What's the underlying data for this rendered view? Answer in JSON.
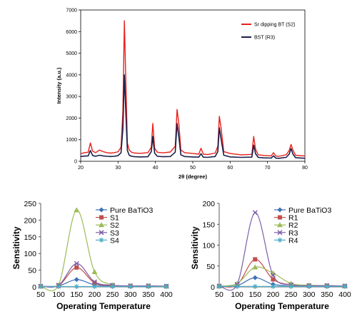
{
  "chart_data": [
    {
      "type": "line",
      "xlabel": "2θ (degree)",
      "ylabel": "Intensity (a.u.)",
      "xlim": [
        20,
        80
      ],
      "ylim": [
        0,
        7000
      ],
      "xticks": [
        20,
        30,
        40,
        50,
        60,
        70,
        80
      ],
      "yticks": [
        0,
        1000,
        2000,
        3000,
        4000,
        5000,
        6000,
        7000
      ],
      "legend": "top-right",
      "series": [
        {
          "name": "Sr dipping BT (S2)",
          "color": "#e8201b",
          "x": [
            20,
            21,
            22,
            22.6,
            23.2,
            24,
            25,
            26,
            27,
            28,
            29,
            30,
            30.8,
            31.3,
            31.7,
            32.1,
            32.5,
            33,
            33.6,
            34.5,
            36,
            38,
            38.9,
            39.3,
            39.8,
            40.5,
            42,
            44,
            45.3,
            45.8,
            46.3,
            46.8,
            47.8,
            50,
            51.6,
            52.2,
            52.8,
            54,
            56,
            56.7,
            57.1,
            57.6,
            58.3,
            60,
            63,
            65.8,
            66.3,
            66.8,
            67.5,
            69,
            71,
            71.6,
            72.2,
            73,
            75,
            75.8,
            76.3,
            76.8,
            77.5,
            80
          ],
          "y": [
            350,
            400,
            420,
            850,
            470,
            400,
            520,
            450,
            400,
            380,
            400,
            440,
            650,
            2300,
            6500,
            3600,
            850,
            520,
            420,
            380,
            370,
            400,
            650,
            1750,
            600,
            420,
            390,
            430,
            700,
            2400,
            1700,
            520,
            400,
            360,
            330,
            600,
            330,
            310,
            380,
            700,
            2080,
            1500,
            450,
            360,
            300,
            320,
            1150,
            560,
            300,
            270,
            250,
            400,
            240,
            230,
            300,
            500,
            780,
            520,
            280,
            240
          ]
        },
        {
          "name": "BST (R3)",
          "color": "#1a1f4a",
          "x": [
            20,
            21,
            22,
            22.6,
            23.2,
            24,
            25,
            26,
            27,
            28,
            29,
            30,
            30.8,
            31.3,
            31.7,
            32.1,
            32.5,
            33,
            33.6,
            34.5,
            36,
            38,
            38.9,
            39.3,
            39.8,
            40.5,
            42,
            44,
            45.3,
            45.8,
            46.3,
            46.8,
            47.8,
            50,
            51.6,
            52.2,
            52.8,
            54,
            56,
            56.7,
            57.1,
            57.6,
            58.3,
            60,
            63,
            65.8,
            66.3,
            66.8,
            67.5,
            69,
            71,
            71.6,
            72.2,
            73,
            75,
            75.8,
            76.3,
            76.8,
            77.5,
            80
          ],
          "y": [
            220,
            240,
            250,
            500,
            270,
            230,
            280,
            250,
            230,
            220,
            230,
            260,
            400,
            1500,
            4000,
            2200,
            500,
            280,
            230,
            210,
            200,
            210,
            450,
            1150,
            380,
            230,
            210,
            220,
            420,
            1750,
            1100,
            300,
            220,
            200,
            190,
            350,
            190,
            180,
            220,
            450,
            1550,
            1000,
            280,
            200,
            180,
            190,
            750,
            350,
            180,
            160,
            150,
            250,
            145,
            140,
            180,
            330,
            590,
            330,
            170,
            140
          ]
        }
      ]
    },
    {
      "type": "line",
      "xlabel": "Operating  Temperature",
      "ylabel": "Sensitivity",
      "categories": [
        "50",
        "100",
        "150",
        "200",
        "250",
        "300",
        "350",
        "400"
      ],
      "ylim": [
        0,
        250
      ],
      "yticks": [
        0,
        50,
        100,
        150,
        200,
        250
      ],
      "legend": "top-right",
      "series": [
        {
          "name": "Pure BaTiO3",
          "color": "#3b6fb6",
          "marker": "diamond",
          "values": [
            2,
            3,
            22,
            6,
            3,
            2,
            2,
            2
          ]
        },
        {
          "name": "S1",
          "color": "#c0504d",
          "marker": "square",
          "values": [
            2,
            4,
            58,
            12,
            4,
            3,
            3,
            2
          ]
        },
        {
          "name": "S2",
          "color": "#9bbb59",
          "marker": "triangle",
          "values": [
            2,
            6,
            230,
            45,
            6,
            3,
            3,
            2
          ]
        },
        {
          "name": "S3",
          "color": "#7b5ea7",
          "marker": "x",
          "values": [
            2,
            5,
            70,
            15,
            5,
            3,
            3,
            2
          ]
        },
        {
          "name": "S4",
          "color": "#4bacc6",
          "marker": "star",
          "values": [
            1,
            1,
            1,
            1,
            1,
            1,
            1,
            1
          ]
        }
      ]
    },
    {
      "type": "line",
      "xlabel": "Operating  Temperature",
      "ylabel": "Sensitivity",
      "categories": [
        "50",
        "100",
        "150",
        "200",
        "250",
        "300",
        "350",
        "400"
      ],
      "ylim": [
        0,
        200
      ],
      "yticks": [
        0,
        50,
        100,
        150,
        200
      ],
      "legend": "top-right",
      "series": [
        {
          "name": "Pure BaTiO3",
          "color": "#3b6fb6",
          "marker": "diamond",
          "values": [
            2,
            3,
            22,
            6,
            3,
            2,
            2,
            2
          ]
        },
        {
          "name": "R1",
          "color": "#c0504d",
          "marker": "square",
          "values": [
            2,
            5,
            66,
            18,
            5,
            3,
            3,
            2
          ]
        },
        {
          "name": "R2",
          "color": "#9bbb59",
          "marker": "triangle",
          "values": [
            2,
            8,
            47,
            33,
            8,
            4,
            3,
            2
          ]
        },
        {
          "name": "R3",
          "color": "#7b5ea7",
          "marker": "x",
          "values": [
            2,
            6,
            178,
            28,
            5,
            3,
            3,
            2
          ]
        },
        {
          "name": "R4",
          "color": "#4bacc6",
          "marker": "star",
          "values": [
            1,
            1,
            1,
            1,
            1,
            1,
            1,
            1
          ]
        }
      ]
    }
  ]
}
